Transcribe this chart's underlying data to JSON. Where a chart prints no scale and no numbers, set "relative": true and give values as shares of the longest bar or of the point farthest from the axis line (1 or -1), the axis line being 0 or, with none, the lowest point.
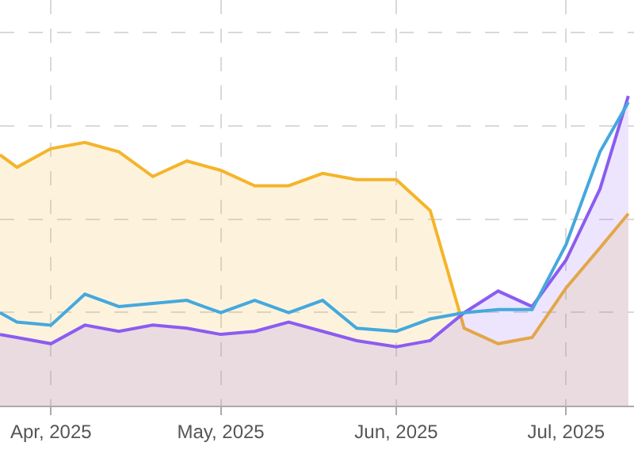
{
  "chart_data": {
    "type": "line",
    "relative": true,
    "x": [
      "2025-03-23",
      "2025-03-26",
      "2025-04-01",
      "2025-04-07",
      "2025-04-13",
      "2025-04-19",
      "2025-04-25",
      "2025-05-01",
      "2025-05-07",
      "2025-05-13",
      "2025-05-19",
      "2025-05-25",
      "2025-06-01",
      "2025-06-07",
      "2025-06-13",
      "2025-06-19",
      "2025-06-25",
      "2025-07-01",
      "2025-07-07",
      "2025-07-12"
    ],
    "xlim": [
      "2025-03-23",
      "2025-07-13"
    ],
    "xticks": [
      {
        "value": "2025-04-01",
        "label": "Apr, 2025"
      },
      {
        "value": "2025-05-01",
        "label": "May, 2025"
      },
      {
        "value": "2025-06-01",
        "label": "Jun, 2025"
      },
      {
        "value": "2025-07-01",
        "label": "Jul, 2025"
      }
    ],
    "grid": true,
    "line_style": "solid",
    "marker": "none",
    "series": [
      {
        "type": "area",
        "color": "#f5b42a",
        "values": [
          0.81,
          0.77,
          0.83,
          0.85,
          0.82,
          0.74,
          0.79,
          0.76,
          0.71,
          0.71,
          0.75,
          0.73,
          0.73,
          0.63,
          0.25,
          0.2,
          0.22,
          0.38,
          0.51,
          0.62
        ]
      },
      {
        "color": "#45a8dd",
        "values": [
          0.3,
          0.27,
          0.26,
          0.36,
          0.32,
          0.33,
          0.34,
          0.3,
          0.34,
          0.3,
          0.34,
          0.25,
          0.24,
          0.28,
          0.3,
          0.31,
          0.31,
          0.52,
          0.82,
          0.98
        ]
      },
      {
        "type": "area",
        "color": "#8b5cf0",
        "values": [
          0.23,
          0.22,
          0.2,
          0.26,
          0.24,
          0.26,
          0.25,
          0.23,
          0.24,
          0.27,
          0.24,
          0.21,
          0.19,
          0.21,
          0.3,
          0.37,
          0.32,
          0.47,
          0.7,
          1
        ]
      }
    ]
  }
}
